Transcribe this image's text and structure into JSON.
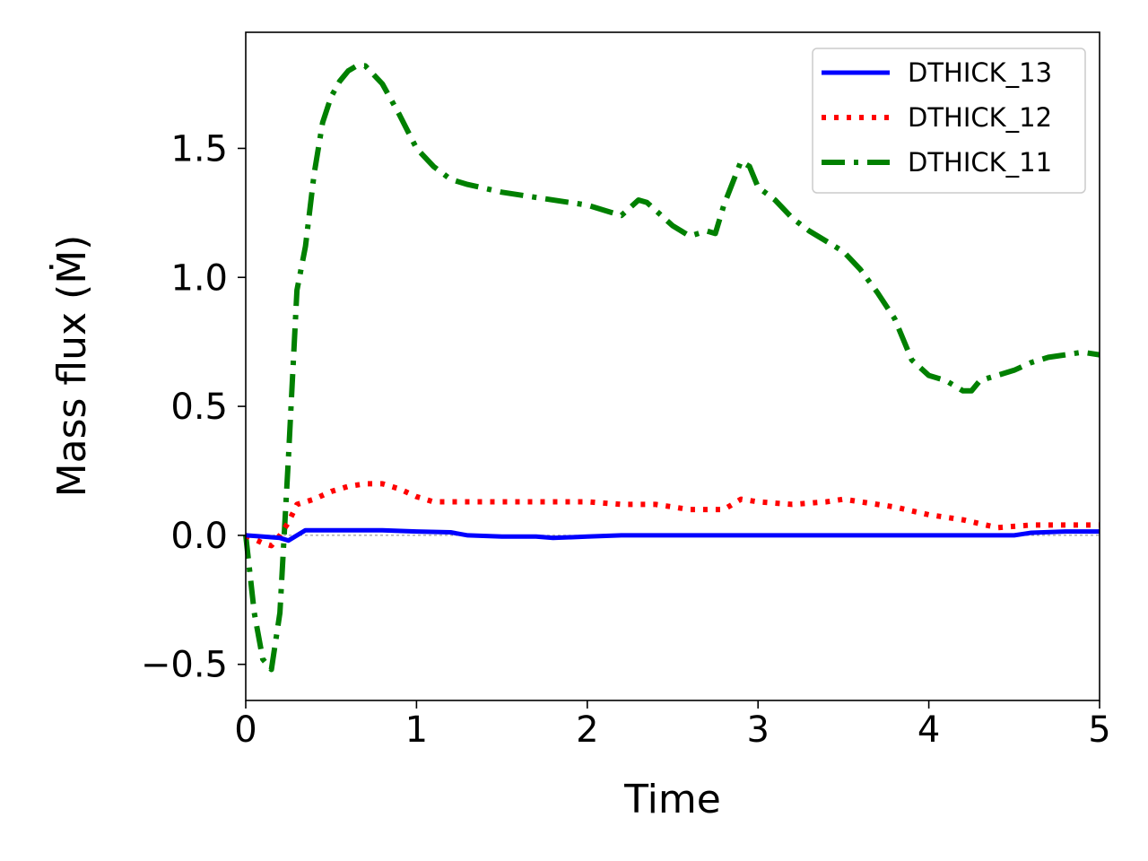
{
  "chart_data": {
    "type": "line",
    "xlabel": "Time",
    "ylabel": "Mass flux (Ṁ)",
    "xlim": [
      0,
      5
    ],
    "ylim": [
      -0.64,
      1.95
    ],
    "xticks": [
      0,
      1,
      2,
      3,
      4,
      5
    ],
    "xtick_labels": [
      "0",
      "1",
      "2",
      "3",
      "4",
      "5"
    ],
    "yticks": [
      -0.5,
      0.0,
      0.5,
      1.0,
      1.5
    ],
    "ytick_labels": [
      "−0.5",
      "0.0",
      "0.5",
      "1.0",
      "1.5"
    ],
    "grid": false,
    "legend_position": "top-right",
    "reference_line": {
      "y": 0,
      "style": "dashed-thin"
    },
    "series": [
      {
        "name": "DTHICK_13",
        "color": "#0000ff",
        "style": "solid",
        "x": [
          0,
          0.1,
          0.2,
          0.25,
          0.35,
          0.5,
          0.6,
          0.8,
          1.0,
          1.2,
          1.3,
          1.5,
          1.7,
          1.8,
          2.0,
          2.2,
          2.5,
          3.0,
          3.5,
          4.0,
          4.5,
          4.6,
          4.8,
          5.0
        ],
        "y": [
          0.0,
          -0.005,
          -0.01,
          -0.02,
          0.02,
          0.02,
          0.02,
          0.02,
          0.015,
          0.012,
          0.0,
          -0.005,
          -0.005,
          -0.01,
          -0.005,
          0.0,
          0.0,
          0.0,
          0.0,
          0.0,
          0.0,
          0.01,
          0.015,
          0.015
        ]
      },
      {
        "name": "DTHICK_12",
        "color": "#ff0000",
        "style": "dotted",
        "x": [
          0,
          0.1,
          0.15,
          0.2,
          0.25,
          0.3,
          0.4,
          0.5,
          0.6,
          0.7,
          0.8,
          0.9,
          1.0,
          1.1,
          1.2,
          1.4,
          1.6,
          1.8,
          2.0,
          2.2,
          2.4,
          2.6,
          2.8,
          2.9,
          3.0,
          3.2,
          3.4,
          3.5,
          3.6,
          3.8,
          4.0,
          4.2,
          4.4,
          4.6,
          4.8,
          5.0
        ],
        "y": [
          0.0,
          -0.03,
          -0.04,
          0.0,
          0.05,
          0.12,
          0.14,
          0.17,
          0.19,
          0.2,
          0.2,
          0.18,
          0.15,
          0.13,
          0.13,
          0.13,
          0.13,
          0.13,
          0.13,
          0.12,
          0.12,
          0.1,
          0.1,
          0.14,
          0.13,
          0.12,
          0.13,
          0.14,
          0.13,
          0.11,
          0.08,
          0.06,
          0.03,
          0.04,
          0.04,
          0.04
        ]
      },
      {
        "name": "DTHICK_11",
        "color": "#008000",
        "style": "dashdot",
        "x": [
          0,
          0.05,
          0.1,
          0.15,
          0.2,
          0.25,
          0.3,
          0.35,
          0.4,
          0.45,
          0.5,
          0.55,
          0.6,
          0.65,
          0.7,
          0.8,
          0.9,
          1.0,
          1.1,
          1.2,
          1.3,
          1.5,
          1.7,
          2.0,
          2.1,
          2.2,
          2.3,
          2.35,
          2.4,
          2.5,
          2.6,
          2.7,
          2.75,
          2.8,
          2.9,
          2.95,
          3.0,
          3.1,
          3.2,
          3.3,
          3.4,
          3.5,
          3.6,
          3.7,
          3.8,
          3.9,
          4.0,
          4.1,
          4.2,
          4.25,
          4.3,
          4.4,
          4.5,
          4.6,
          4.7,
          4.8,
          4.9,
          5.0
        ],
        "y": [
          0.0,
          -0.3,
          -0.48,
          -0.52,
          -0.3,
          0.3,
          0.95,
          1.12,
          1.4,
          1.6,
          1.7,
          1.76,
          1.8,
          1.82,
          1.82,
          1.75,
          1.63,
          1.5,
          1.43,
          1.38,
          1.36,
          1.33,
          1.31,
          1.28,
          1.26,
          1.24,
          1.3,
          1.29,
          1.26,
          1.2,
          1.16,
          1.18,
          1.17,
          1.28,
          1.45,
          1.43,
          1.35,
          1.3,
          1.23,
          1.18,
          1.14,
          1.1,
          1.03,
          0.94,
          0.84,
          0.68,
          0.62,
          0.6,
          0.56,
          0.56,
          0.6,
          0.62,
          0.64,
          0.67,
          0.69,
          0.7,
          0.71,
          0.7
        ]
      }
    ]
  }
}
